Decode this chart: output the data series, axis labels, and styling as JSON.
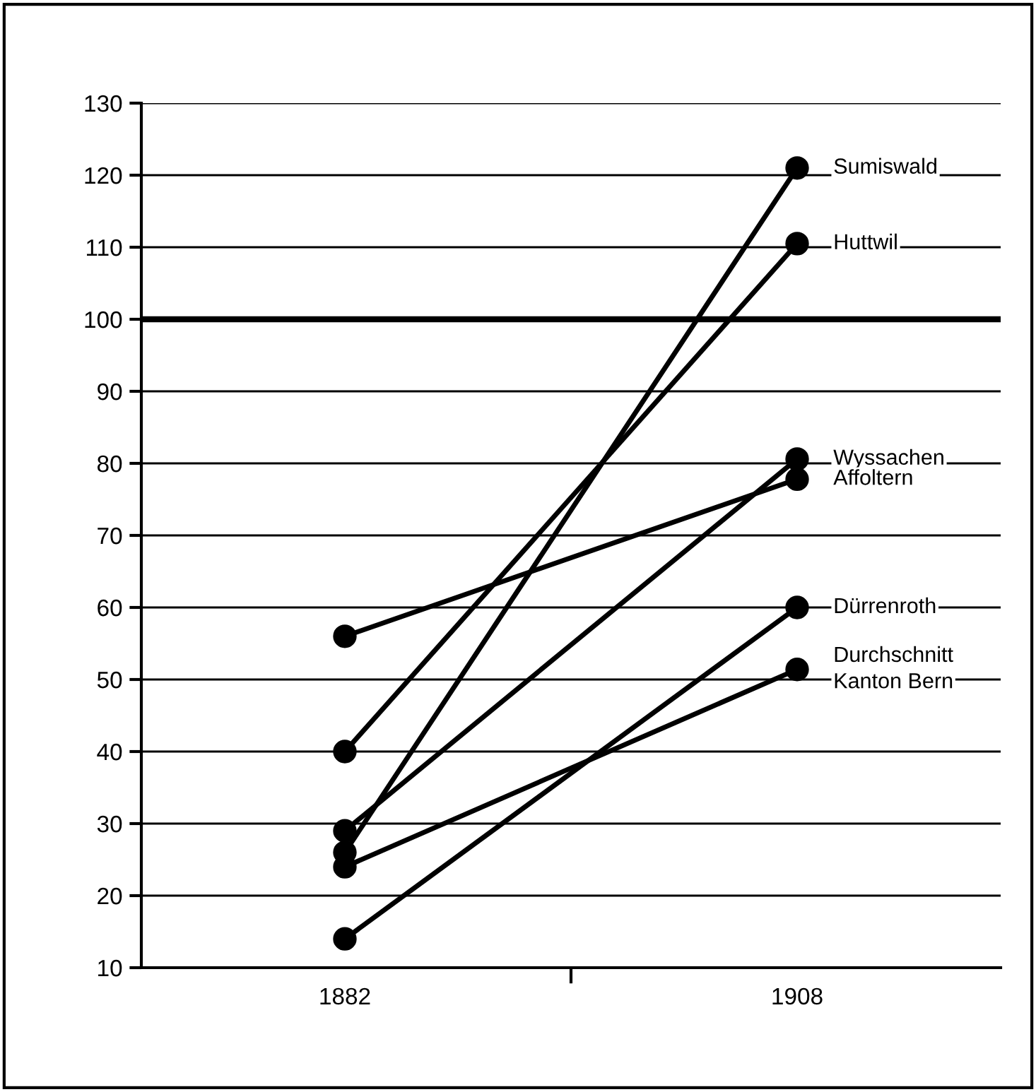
{
  "chart_data": {
    "type": "line",
    "categories": [
      "1882",
      "1908"
    ],
    "series": [
      {
        "name": "Sumiswald",
        "color": "#000000",
        "values": [
          26,
          121
        ]
      },
      {
        "name": "Huttwil",
        "color": "#000000",
        "values": [
          40,
          110.5
        ]
      },
      {
        "name": "Wyssachen",
        "color": "#000000",
        "values": [
          29,
          80.6
        ]
      },
      {
        "name": "Affoltern",
        "color": "#000000",
        "values": [
          56,
          77.8
        ]
      },
      {
        "name": "Dürrenroth",
        "color": "#000000",
        "values": [
          14,
          60
        ]
      },
      {
        "name": "Durchschnitt\nKanton Bern",
        "color": "#000000",
        "values": [
          24,
          51.4
        ]
      }
    ],
    "ylim": [
      10,
      130
    ],
    "yticks": [
      10,
      20,
      30,
      40,
      50,
      60,
      70,
      80,
      90,
      100,
      110,
      120,
      130
    ],
    "ref_lines": [
      {
        "axis": "y",
        "value": 100,
        "color": "#000000"
      }
    ],
    "grid": "y",
    "marker": "circle",
    "line_style": "solid",
    "legend": false
  }
}
